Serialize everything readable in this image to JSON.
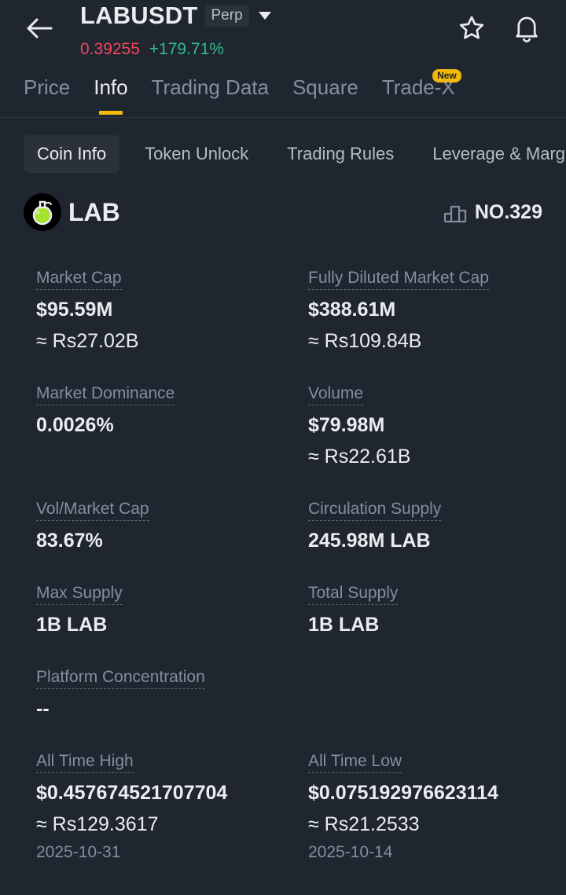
{
  "header": {
    "pair": "LABUSDT",
    "perp_label": "Perp",
    "price": "0.39255",
    "change": "+179.71%"
  },
  "tabs": [
    {
      "label": "Price"
    },
    {
      "label": "Info"
    },
    {
      "label": "Trading Data"
    },
    {
      "label": "Square"
    },
    {
      "label": "Trade-X",
      "badge": "New"
    }
  ],
  "subtabs": [
    {
      "label": "Coin Info"
    },
    {
      "label": "Token Unlock"
    },
    {
      "label": "Trading Rules"
    },
    {
      "label": "Leverage & Margin"
    }
  ],
  "coin": {
    "name": "LAB",
    "rank": "NO.329"
  },
  "stats": {
    "market_cap": {
      "label": "Market Cap",
      "value": "$95.59M",
      "approx": "≈ Rs27.02B"
    },
    "fdv": {
      "label": "Fully Diluted Market Cap",
      "value": "$388.61M",
      "approx": "≈ Rs109.84B"
    },
    "dominance": {
      "label": "Market Dominance",
      "value": "0.0026%"
    },
    "volume": {
      "label": "Volume",
      "value": "$79.98M",
      "approx": "≈ Rs22.61B"
    },
    "vol_mcap": {
      "label": "Vol/Market Cap",
      "value": "83.67%"
    },
    "circulation": {
      "label": "Circulation Supply",
      "value": "245.98M LAB"
    },
    "max_supply": {
      "label": "Max Supply",
      "value": "1B LAB"
    },
    "total_supply": {
      "label": "Total Supply",
      "value": "1B LAB"
    },
    "platform": {
      "label": "Platform Concentration",
      "value": "--"
    },
    "ath": {
      "label": "All Time High",
      "value": "$0.457674521707704",
      "approx": "≈ Rs129.3617",
      "date": "2025-10-31"
    },
    "atl": {
      "label": "All Time Low",
      "value": "$0.075192976623114",
      "approx": "≈ Rs21.2533",
      "date": "2025-10-14"
    }
  },
  "colors": {
    "background": "#1f2630",
    "accent": "#f0b90b",
    "price_down": "#f6465d",
    "price_up": "#2ebd85",
    "muted": "#848e9c"
  }
}
